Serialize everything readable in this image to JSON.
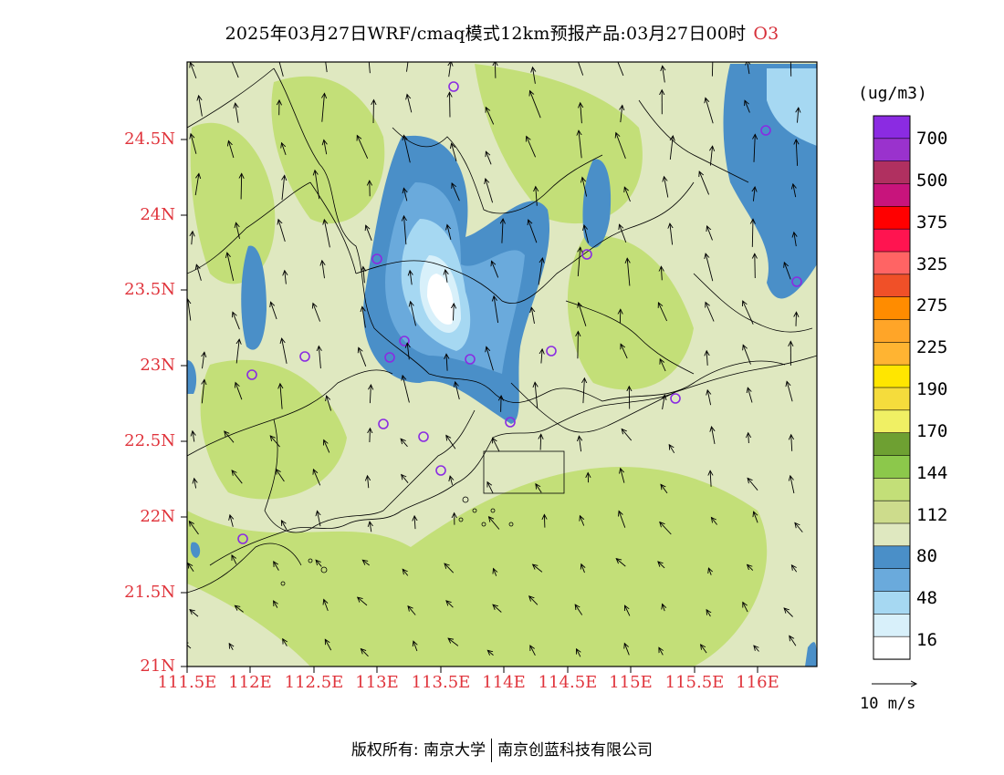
{
  "title": {
    "main": "2025年03月27日WRF/cmaq模式12km预报产品:03月27日00时",
    "species": "O3"
  },
  "axes": {
    "lat_labels": [
      "24.5N",
      "24N",
      "23.5N",
      "23N",
      "22.5N",
      "22N",
      "21.5N",
      "21N"
    ],
    "lon_labels": [
      "111.5E",
      "112E",
      "112.5E",
      "113E",
      "113.5E",
      "114E",
      "114.5E",
      "115E",
      "115.5E",
      "116E"
    ]
  },
  "legend": {
    "unit": "(ug/m3)",
    "labels": [
      "700",
      "500",
      "375",
      "325",
      "275",
      "225",
      "190",
      "170",
      "144",
      "112",
      "80",
      "48",
      "16"
    ],
    "colors": [
      "#8b2be2",
      "#9a32cd",
      "#b03060",
      "#c8147c",
      "#ff0000",
      "#ff1450",
      "#ff6464",
      "#f05028",
      "#ff8c00",
      "#ffa528",
      "#ffb432",
      "#ffe600",
      "#f5dc3c",
      "#f0f064",
      "#6ea032",
      "#8cc84b",
      "#c3df78",
      "#cddc8c",
      "#dfe8c0",
      "#4a8fc8",
      "#6aaadc",
      "#a6d8f2",
      "#d8f0fa",
      "#ffffff"
    ]
  },
  "wind": {
    "reference_label": "10 m/s"
  },
  "footer": {
    "left": "版权所有: 南京大学",
    "right": "南京创蓝科技有限公司"
  },
  "map_colors": {
    "bg_green_light": "#dfe8c0",
    "green_mid": "#c3df78",
    "green_dark": "#cddc8c",
    "blue_dark": "#4a8fc8",
    "blue_mid": "#6aaadc",
    "blue_light": "#a6d8f2",
    "blue_pale": "#d8f0fa"
  }
}
